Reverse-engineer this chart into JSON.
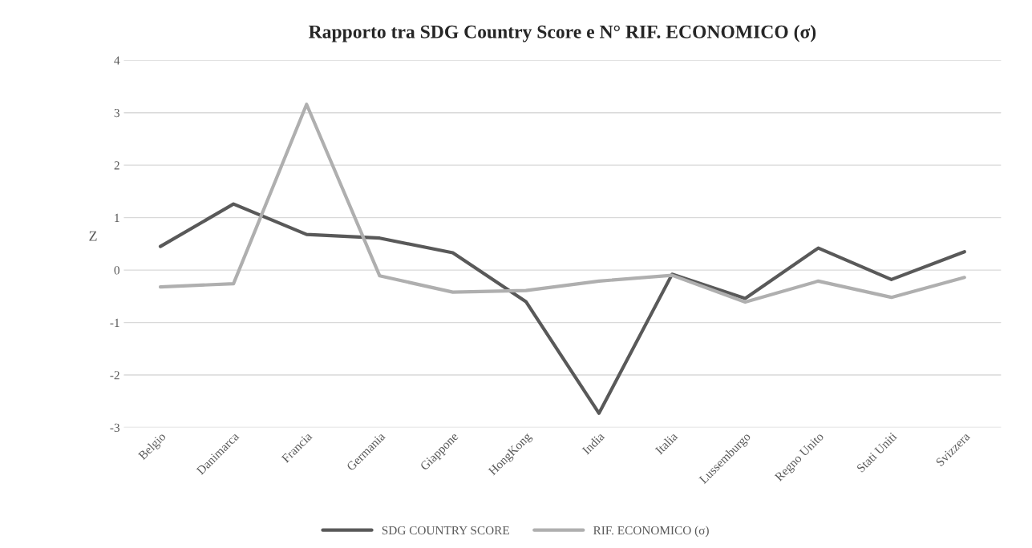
{
  "chart_data": {
    "type": "line",
    "title": "Rapporto tra SDG Country Score e N° RIF. ECONOMICO (σ)",
    "ylabel": "Z",
    "categories": [
      "Belgio",
      "Danimarca",
      "Francia",
      "Germania",
      "Giappone",
      "HongKong",
      "India",
      "Italia",
      "Lussemburgo",
      "Regno Unito",
      "Stati Uniti",
      "Svizzera"
    ],
    "series": [
      {
        "name": "SDG COUNTRY SCORE",
        "color": "#595959",
        "values": [
          0.45,
          1.26,
          0.68,
          0.61,
          0.33,
          -0.6,
          -2.73,
          -0.08,
          -0.54,
          0.42,
          -0.18,
          0.35
        ]
      },
      {
        "name": "RIF. ECONOMICO (σ)",
        "color": "#afafaf",
        "values": [
          -0.32,
          -0.26,
          3.16,
          -0.11,
          -0.42,
          -0.39,
          -0.21,
          -0.1,
          -0.61,
          -0.21,
          -0.52,
          -0.14
        ]
      }
    ],
    "ylim": [
      -3,
      4
    ],
    "yticks": [
      -3,
      -2,
      -1,
      0,
      1,
      2,
      3,
      4
    ],
    "grid": "y",
    "legend": "bottom",
    "marker": "none",
    "line_style": "solid"
  }
}
